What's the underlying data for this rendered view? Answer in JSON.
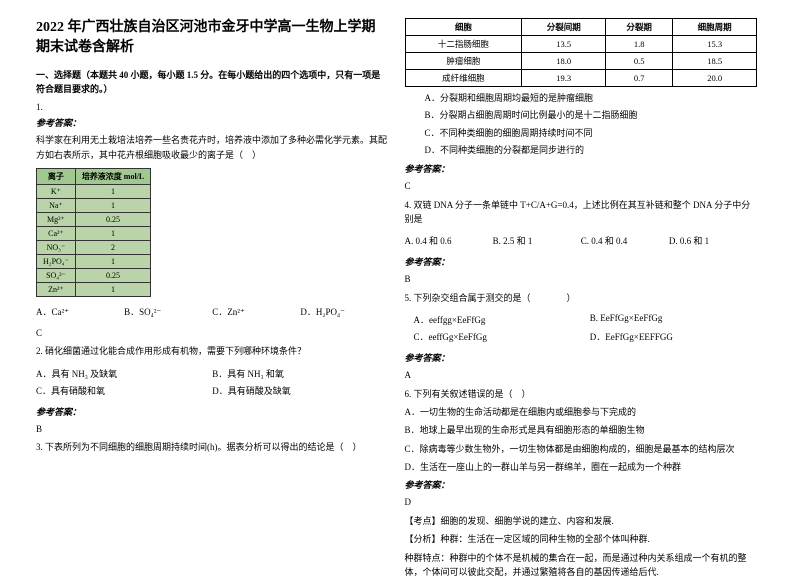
{
  "title": "2022 年广西壮族自治区河池市金牙中学高一生物上学期期末试卷含解析",
  "section1": "一、选择题（本题共 40 小题，每小题 1.5 分。在每小题给出的四个选项中，只有一项是符合题目要求的。）",
  "q1": {
    "num": "1.",
    "answer_label": "参考答案：",
    "text1": "科学家在利用无土栽培法培养一些名贵花卉时，培养液中添加了多种必需化学元素。其配方如右表所示，其中花卉根细胞吸收最少的离子是（　）",
    "table_h1": "离子",
    "table_h2": "培养液浓度\nmol/L",
    "rows": [
      [
        "K⁺",
        "1"
      ],
      [
        "Na⁺",
        "1"
      ],
      [
        "Mg²⁺",
        "0.25"
      ],
      [
        "Ca²⁺",
        "1"
      ],
      [
        "NO₃⁻",
        "2"
      ],
      [
        "H₂PO₄⁻",
        "1"
      ],
      [
        "SO₄²⁻",
        "0.25"
      ],
      [
        "Zn²⁺",
        "1"
      ]
    ],
    "optA": "A．Ca²⁺",
    "optB": "B．SO₄²⁻",
    "optC": "C．Zn²⁺",
    "optD": "D．H₂PO₄⁻",
    "ans": "C"
  },
  "q2": {
    "text": "2. 硝化细菌通过化能合成作用形成有机物，需要下列哪种环境条件？",
    "optA": "A．具有 NH₃ 及缺氧",
    "optB": "B．具有 NH₃ 和氧",
    "optC": "C．具有硝酸和氧",
    "optD": "D．具有硝酸及缺氧",
    "answer_label": "参考答案：",
    "ans": "B"
  },
  "q3": {
    "text": "3. 下表所列为不同细胞的细胞周期持续时间(h)。据表分析可以得出的结论是（　）"
  },
  "right": {
    "table_h": [
      "细胞",
      "分裂间期",
      "分裂期",
      "细胞周期"
    ],
    "rows": [
      [
        "十二指肠细胞",
        "13.5",
        "1.8",
        "15.3"
      ],
      [
        "肿瘤细胞",
        "18.0",
        "0.5",
        "18.5"
      ],
      [
        "成纤维细胞",
        "19.3",
        "0.7",
        "20.0"
      ]
    ],
    "subA": "A．分裂期和细胞周期均最短的是肿瘤细胞",
    "subB": "B．分裂期占细胞周期时间比例最小的是十二指肠细胞",
    "subC": "C．不同种类细胞的细胞周期持续时间不同",
    "subD": "D．不同种类细胞的分裂都是同步进行的",
    "answer_label": "参考答案：",
    "ans": "C"
  },
  "q4": {
    "text": "4. 双链 DNA 分子一条单链中 T+C/A+G=0.4，上述比例在其互补链和整个 DNA 分子中分别是",
    "optA": "A. 0.4 和 0.6",
    "optB": "B. 2.5 和 1",
    "optC": "C. 0.4 和 0.4",
    "optD": "D. 0.6 和 1",
    "answer_label": "参考答案：",
    "ans": "B"
  },
  "q5": {
    "text": "5. 下列杂交组合属于测交的是（　　　　）",
    "optA": "A．eeffgg×EeFfGg",
    "optB": "B. EeFfGg×EeFfGg",
    "optC": "C．eeffGg×EeFfGg",
    "optD": "D．EeFfGg×EEFFGG",
    "answer_label": "参考答案：",
    "ans": "A"
  },
  "q6": {
    "text": "6. 下列有关叙述错误的是（　）",
    "optA": "A．一切生物的生命活动都是在细胞内或细胞参与下完成的",
    "optB": "B．地球上最早出现的生命形式是具有细胞形态的单细胞生物",
    "optC": "C．除病毒等少数生物外，一切生物体都是由细胞构成的，细胞是最基本的结构层次",
    "optD": "D．生活在一座山上的一群山羊与另一群绵羊，圈在一起成为一个种群",
    "answer_label": "参考答案：",
    "ans": "D",
    "kd": "【考点】细胞的发现、细胞学说的建立、内容和发展.",
    "fx": "【分析】种群：生活在一定区域的同种生物的全部个体叫种群.",
    "fx2": "种群特点：种群中的个体不是机械的集合在一起，而是通过种内关系组成一个有机的整体，个体间可以彼此交配，并通过繁殖将各自的基因传递给后代.",
    "none": ""
  }
}
